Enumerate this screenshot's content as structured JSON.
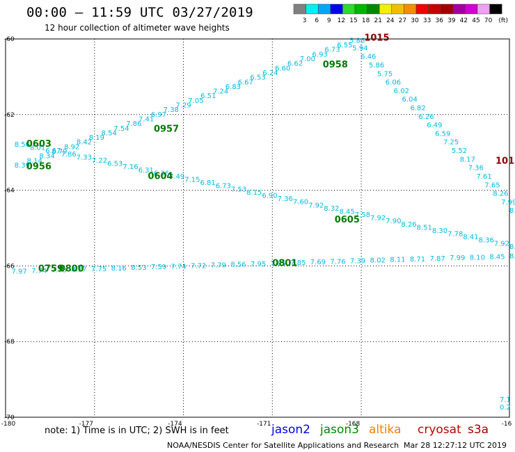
{
  "header": {
    "title": "00:00 — 11:59 UTC 03/27/2019",
    "subtitle": "12 hour collection of altimeter wave heights"
  },
  "colorbar": {
    "swatches": [
      "#808080",
      "#00f0f0",
      "#00a8f0",
      "#0000f0",
      "#30d830",
      "#00b400",
      "#008800",
      "#f0f000",
      "#f0c000",
      "#f09000",
      "#f00000",
      "#c80000",
      "#a00000",
      "#a000a0",
      "#d000d0",
      "#f0a0f0",
      "#000000"
    ],
    "labels": [
      "3",
      "6",
      "9",
      "12",
      "15",
      "18",
      "21",
      "24",
      "27",
      "30",
      "33",
      "36",
      "39",
      "42",
      "45",
      "70",
      "(ft)"
    ]
  },
  "axes": {
    "lon_labels": [
      "-180",
      "-177",
      "-174",
      "-171",
      "-168",
      "-16"
    ],
    "lat_labels": [
      "-60",
      "-62",
      "-64",
      "-66",
      "-68",
      "-70"
    ]
  },
  "colors": {
    "track_text": "#00b8e0",
    "jason3": "#007a00",
    "cryosat": "#8a0000",
    "jason2": "#0000e0",
    "altika": "#f08000",
    "s3a": "#a00000"
  },
  "time_labels": [
    {
      "text": "1015",
      "lon": -167.9,
      "lat": -60.05,
      "sat": "cryosat"
    },
    {
      "text": "0958",
      "lon": -169.3,
      "lat": -60.75,
      "sat": "jason3"
    },
    {
      "text": "0957",
      "lon": -175.0,
      "lat": -62.45,
      "sat": "jason3"
    },
    {
      "text": "0603",
      "lon": -179.3,
      "lat": -62.85,
      "sat": "jason3"
    },
    {
      "text": "0956",
      "lon": -179.3,
      "lat": -63.45,
      "sat": "jason3"
    },
    {
      "text": "0604",
      "lon": -175.2,
      "lat": -63.7,
      "sat": "jason3"
    },
    {
      "text": "0605",
      "lon": -168.9,
      "lat": -64.85,
      "sat": "jason3"
    },
    {
      "text": "0801",
      "lon": -171.0,
      "lat": -66.0,
      "sat": "jason3"
    },
    {
      "text": "0759",
      "lon": -178.9,
      "lat": -66.15,
      "sat": "jason3"
    },
    {
      "text": "0800",
      "lon": -178.2,
      "lat": -66.15,
      "sat": "jason3"
    },
    {
      "text": "101",
      "lon": -163.4,
      "lat": -63.3,
      "sat": "cryosat"
    }
  ],
  "tracks": [
    {
      "name": "track-a",
      "labels": [
        "8.56",
        "8.01",
        "6.67",
        "7.86",
        "7.33",
        "7.22",
        "6.53",
        "7.16",
        "6.31",
        "6.36",
        "7.49",
        "7.15",
        "6.81",
        "6.73",
        "7.53",
        "8.15",
        "6.90",
        "7.36",
        "7.60",
        "7.92",
        "8.32",
        "8.45",
        "7.58",
        "7.92",
        "7.90",
        "8.26",
        "8.51",
        "8.30",
        "7.78",
        "8.41",
        "8.36",
        "7.92",
        "8.3"
      ],
      "start": [
        -179.7,
        -62.85
      ],
      "end": [
        -163.0,
        -65.55
      ]
    },
    {
      "name": "track-b",
      "labels": [
        "8.39",
        "8.14",
        "8.34",
        "8.79",
        "8.92",
        "8.42",
        "8.19",
        "8.54",
        "7.54",
        "7.86",
        "7.41",
        "6.97",
        "7.38",
        "7.29",
        "7.05",
        "6.51",
        "7.24",
        "6.83",
        "6.67",
        "6.53",
        "6.24",
        "6.60",
        "6.62",
        "7.00",
        "6.93",
        "6.73",
        "6.55",
        "5.86"
      ],
      "start": [
        -179.7,
        -63.4
      ],
      "end": [
        -168.4,
        -60.1
      ]
    },
    {
      "name": "track-c",
      "labels": [
        "5.94",
        "6.46",
        "5.86",
        "5.75",
        "6.06",
        "6.02",
        "6.04",
        "6.82",
        "6.26",
        "6.49",
        "6.59",
        "7.25",
        "5.52",
        "8.17",
        "7.36",
        "7.61",
        "7.65",
        "8.26",
        "7.99",
        "8.5"
      ],
      "start": [
        -168.3,
        -60.3
      ],
      "end": [
        -163.0,
        -64.6
      ]
    },
    {
      "name": "track-d",
      "labels": [
        "7.97",
        "7.74",
        "7.73",
        "8.27",
        "7.75",
        "8.16",
        "8.53",
        "7.59",
        "7.74",
        "7.72",
        "7.79",
        "8.56",
        "7.95",
        "7.85",
        "7.85",
        "7.69",
        "7.76",
        "7.39",
        "8.02",
        "8.11",
        "8.71",
        "7.87",
        "7.99",
        "8.10",
        "8.45",
        "8.25"
      ],
      "start": [
        -179.8,
        -66.2
      ],
      "end": [
        -163.0,
        -65.8
      ]
    }
  ],
  "corner_labels": [
    {
      "text": "7.1",
      "lon": -163.3,
      "lat": -69.6
    },
    {
      "text": "0.2",
      "lon": -163.3,
      "lat": -69.8
    }
  ],
  "footer": {
    "note": "note: 1) Time is in UTC; 2) SWH is in feet",
    "sats": [
      {
        "name": "jason2",
        "color": "#0000e0"
      },
      {
        "name": "jason3",
        "color": "#008800"
      },
      {
        "name": "altika",
        "color": "#f08000"
      },
      {
        "name": "cryosat",
        "color": "#c00000"
      },
      {
        "name": "s3a",
        "color": "#a00000"
      }
    ],
    "credit": "NOAA/NESDIS Center for Satellite Applications and Research",
    "timestamp": "Mar 28 12:27:12 UTC 2019"
  }
}
